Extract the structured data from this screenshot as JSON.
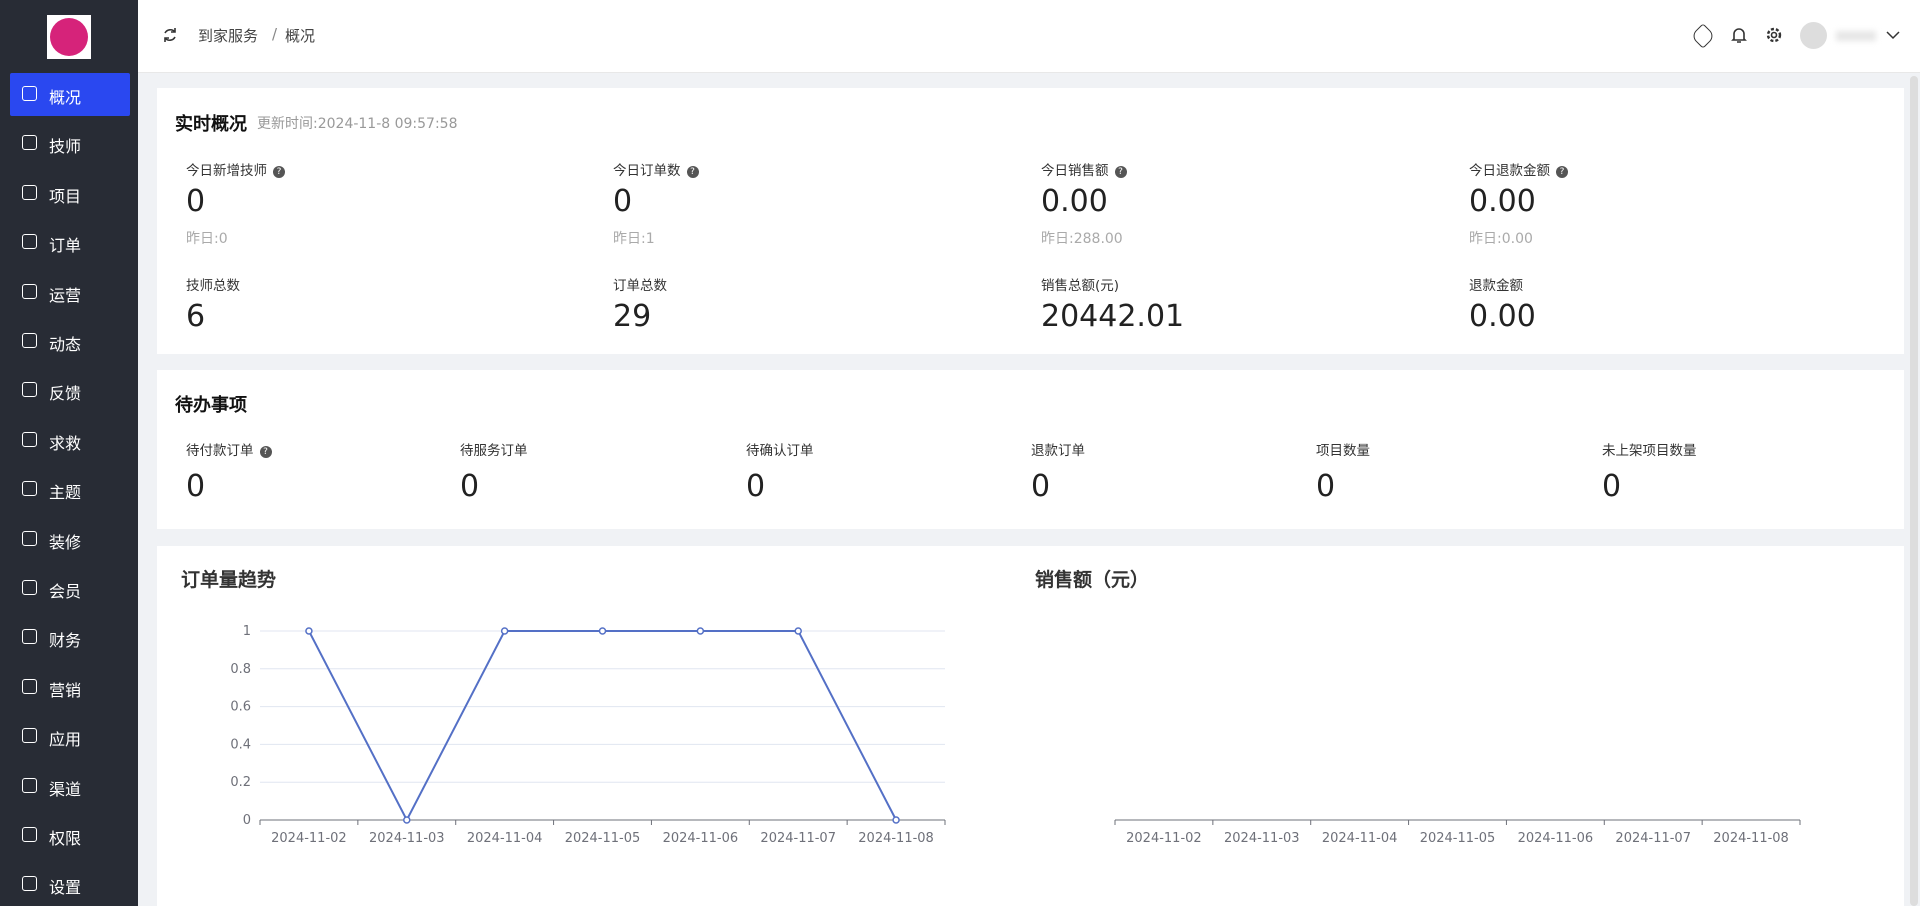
{
  "sidebar": {
    "menu": [
      "概况",
      "技师",
      "项目",
      "订单",
      "运营",
      "动态",
      "反馈",
      "求救",
      "主题",
      "装修",
      "会员",
      "财务",
      "营销",
      "应用",
      "渠道",
      "权限",
      "设置"
    ]
  },
  "breadcrumb": [
    "到家服务",
    "概况"
  ],
  "realtime": {
    "title": "实时概况",
    "update_time": "更新时间:2024-11-8 09:57:58",
    "stats": [
      {
        "label": "今日新增技师",
        "value": "0",
        "yesterday": "昨日:0"
      },
      {
        "label": "今日订单数",
        "value": "0",
        "yesterday": "昨日:1"
      },
      {
        "label": "今日销售额",
        "value": "0.00",
        "yesterday": "昨日:288.00"
      },
      {
        "label": "今日退款金额",
        "value": "0.00",
        "yesterday": "昨日:0.00"
      }
    ],
    "totals": [
      {
        "label": "技师总数",
        "value": "6"
      },
      {
        "label": "订单总数",
        "value": "29"
      },
      {
        "label": "销售总额(元)",
        "value": "20442.01"
      },
      {
        "label": "退款金额",
        "value": "0.00"
      }
    ]
  },
  "todo": {
    "title": "待办事项",
    "items": [
      {
        "label": "待付款订单",
        "value": "0"
      },
      {
        "label": "待服务订单",
        "value": "0"
      },
      {
        "label": "待确认订单",
        "value": "0"
      },
      {
        "label": "退款订单",
        "value": "0"
      },
      {
        "label": "项目数量",
        "value": "0"
      },
      {
        "label": "未上架项目数量",
        "value": "0"
      }
    ]
  },
  "chart_data": [
    {
      "type": "line",
      "title": "订单量趋势",
      "categories": [
        "2024-11-02",
        "2024-11-03",
        "2024-11-04",
        "2024-11-05",
        "2024-11-06",
        "2024-11-07",
        "2024-11-08"
      ],
      "values": [
        1,
        0,
        1,
        1,
        1,
        1,
        0
      ],
      "color": "#5470c6",
      "ylim": [
        0,
        1
      ],
      "yticks": [
        0,
        0.2,
        0.4,
        0.6,
        0.8,
        1
      ],
      "grid": true
    },
    {
      "type": "line",
      "title": "销售额（元）",
      "categories": [
        "2024-11-02",
        "2024-11-03",
        "2024-11-04",
        "2024-11-05",
        "2024-11-06",
        "2024-11-07",
        "2024-11-08"
      ]
    }
  ]
}
